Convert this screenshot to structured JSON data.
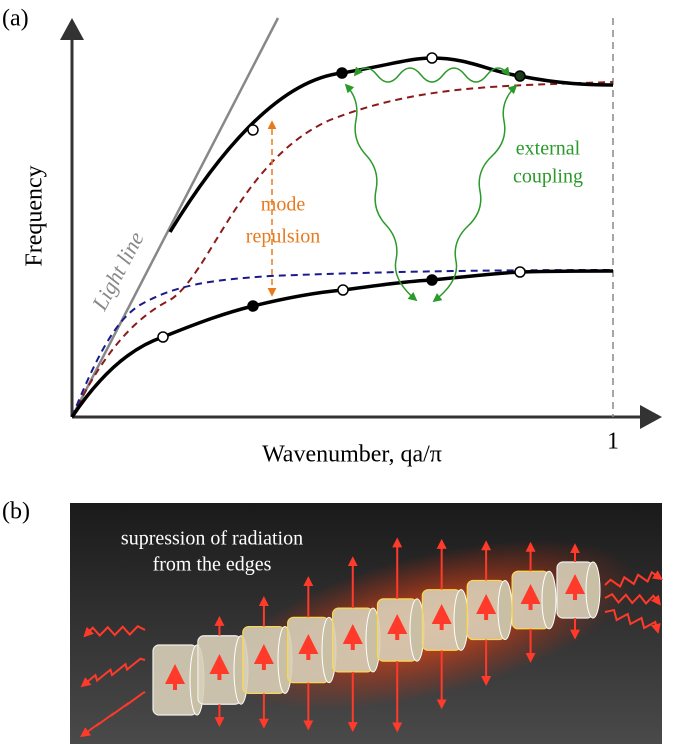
{
  "panel_a": {
    "label": "(a)",
    "y_axis_label": "Frequency",
    "x_axis_label": "Wavenumber, qa/π",
    "x_tick": "1",
    "light_line": "Light line",
    "mode_repulsion": [
      "mode",
      "repulsion"
    ],
    "external_coupling": [
      "external",
      "coupling"
    ]
  },
  "panel_b": {
    "label": "(b)",
    "caption": [
      "supression of radiation",
      "from the edges"
    ]
  }
}
